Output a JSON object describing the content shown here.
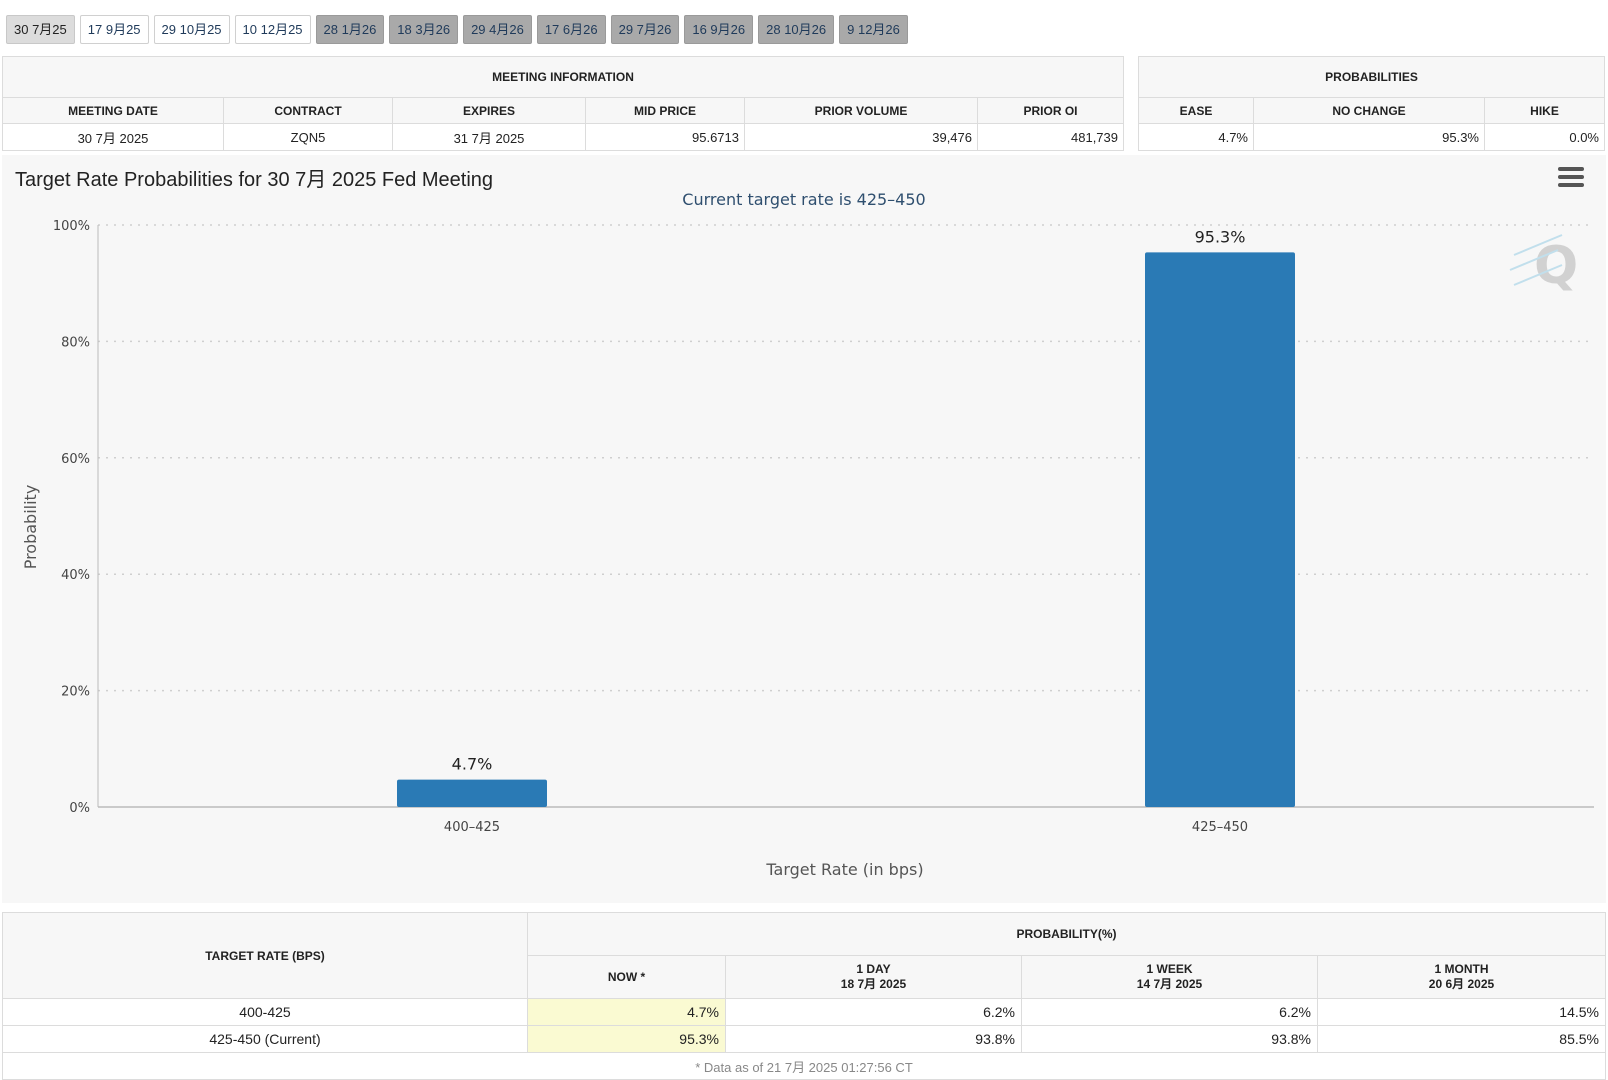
{
  "tabs": [
    {
      "label": "30 7月25",
      "state": "active"
    },
    {
      "label": "17 9月25",
      "state": "normal"
    },
    {
      "label": "29 10月25",
      "state": "normal"
    },
    {
      "label": "10 12月25",
      "state": "normal"
    },
    {
      "label": "28 1月26",
      "state": "dark"
    },
    {
      "label": "18 3月26",
      "state": "dark"
    },
    {
      "label": "29 4月26",
      "state": "dark"
    },
    {
      "label": "17 6月26",
      "state": "dark"
    },
    {
      "label": "29 7月26",
      "state": "dark"
    },
    {
      "label": "16 9月26",
      "state": "dark"
    },
    {
      "label": "28 10月26",
      "state": "dark"
    },
    {
      "label": "9 12月26",
      "state": "dark"
    }
  ],
  "meeting_info": {
    "group_header": "MEETING INFORMATION",
    "headers": [
      "MEETING DATE",
      "CONTRACT",
      "EXPIRES",
      "MID PRICE",
      "PRIOR VOLUME",
      "PRIOR OI"
    ],
    "row": [
      "30 7月 2025",
      "ZQN5",
      "31 7月 2025",
      "95.6713",
      "39,476",
      "481,739"
    ]
  },
  "probabilities": {
    "group_header": "PROBABILITIES",
    "headers": [
      "EASE",
      "NO CHANGE",
      "HIKE"
    ],
    "row": [
      "4.7%",
      "95.3%",
      "0.0%"
    ]
  },
  "chart": {
    "title": "Target Rate Probabilities for 30 7月 2025 Fed Meeting",
    "menu_icon": "hamburger-menu-icon",
    "bar_color": "#2a7ab5"
  },
  "chart_data": {
    "type": "bar",
    "title": "Target Rate Probabilities for 30 7月 2025 Fed Meeting",
    "subtitle": "Current target rate is 425–450",
    "categories": [
      "400–425",
      "425–450"
    ],
    "values": [
      4.7,
      95.3
    ],
    "data_labels": [
      "4.7%",
      "95.3%"
    ],
    "xlabel": "Target Rate (in bps)",
    "ylabel": "Probability",
    "ylim": [
      0,
      100
    ],
    "yticks": [
      "0%",
      "20%",
      "40%",
      "60%",
      "80%",
      "100%"
    ],
    "grid": true,
    "color": "#2a7ab5"
  },
  "rate_table": {
    "rate_header": "TARGET RATE (BPS)",
    "prob_header": "PROBABILITY(%)",
    "columns": [
      {
        "label": "NOW *",
        "date": ""
      },
      {
        "label": "1 DAY",
        "date": "18 7月 2025"
      },
      {
        "label": "1 WEEK",
        "date": "14 7月 2025"
      },
      {
        "label": "1 MONTH",
        "date": "20 6月 2025"
      }
    ],
    "rows": [
      {
        "rate": "400-425",
        "values": [
          "4.7%",
          "6.2%",
          "6.2%",
          "14.5%"
        ]
      },
      {
        "rate": "425-450 (Current)",
        "values": [
          "95.3%",
          "93.8%",
          "93.8%",
          "85.5%"
        ]
      }
    ],
    "footnote": "* Data as of 21 7月 2025 01:27:56 CT"
  }
}
